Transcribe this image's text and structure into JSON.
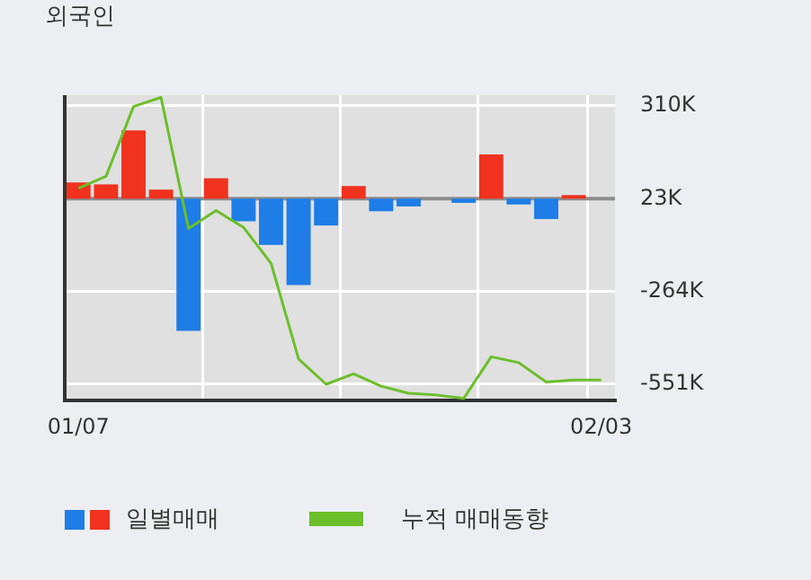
{
  "chart_data": {
    "type": "bar",
    "title": "외국인",
    "categories": [
      "01/07",
      null,
      null,
      null,
      null,
      null,
      null,
      null,
      null,
      null,
      null,
      null,
      null,
      null,
      null,
      null,
      null,
      null,
      null,
      "02/03"
    ],
    "series": [
      {
        "name": "일별매매",
        "colors": [
          "#f0321e",
          "#f0321e",
          "#f0321e",
          "#f0321e",
          "#1e7de6",
          "#f0321e",
          "#1e7de6",
          "#1e7de6",
          "#1e7de6",
          "#1e7de6",
          "#f0321e",
          "#1e7de6",
          "#1e7de6",
          "#f0321e",
          "#1e7de6",
          "#f0321e",
          "#1e7de6",
          "#1e7de6",
          "#f0321e",
          "#f0321e"
        ],
        "base": [
          23,
          23,
          23,
          23,
          23,
          23,
          23,
          23,
          23,
          23,
          23,
          23,
          23,
          null,
          23,
          23,
          23,
          23,
          23,
          null
        ],
        "values": [
          50,
          44,
          211,
          28,
          -409,
          63,
          -70,
          -143,
          -267,
          -83,
          39,
          -39,
          -24,
          null,
          -13,
          137,
          -18,
          -63,
          11,
          null
        ]
      },
      {
        "type": "line",
        "name": "누적 매매동향",
        "color": "#6cbf2a",
        "values": [
          55,
          92,
          308,
          336,
          -69,
          -14,
          -66,
          -177,
          -473,
          -551,
          -519,
          -557,
          -579,
          -584,
          -595,
          -466,
          -484,
          -544,
          -538,
          -538
        ]
      }
    ],
    "ylim": [
      -601,
      343
    ],
    "yticks": [
      {
        "value": 310,
        "label": "310K"
      },
      {
        "value": 23,
        "label": "23K"
      },
      {
        "value": -264,
        "label": "-264K"
      },
      {
        "value": -551,
        "label": "-551K"
      }
    ],
    "ref_lines": [
      {
        "axis": "y",
        "value": 23,
        "color": "#8c8c8c"
      }
    ],
    "grid": true,
    "legend": "bottom"
  }
}
